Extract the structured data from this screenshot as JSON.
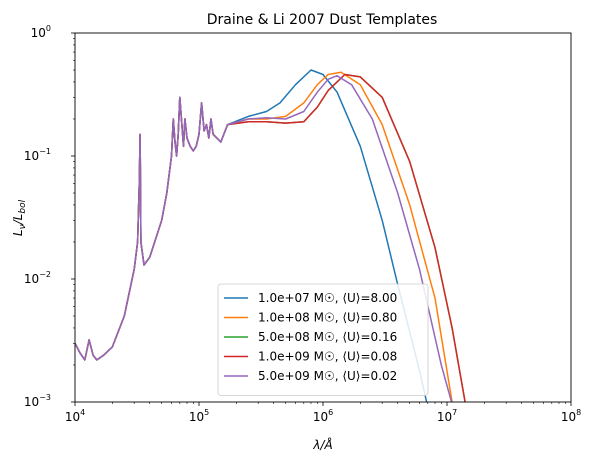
{
  "chart_data": {
    "type": "line",
    "title": "Draine & Li 2007 Dust Templates",
    "xlabel": "λ/Å",
    "ylabel": "L_ν/L_bol",
    "xscale": "log",
    "yscale": "log",
    "xlim": [
      10000,
      100000000
    ],
    "ylim": [
      0.001,
      1
    ],
    "grid": false,
    "legend_position": "lower-center",
    "x_ticks": [
      {
        "value": 10000,
        "base": "10",
        "exp": "4"
      },
      {
        "value": 100000,
        "base": "10",
        "exp": "5"
      },
      {
        "value": 1000000,
        "base": "10",
        "exp": "6"
      },
      {
        "value": 10000000,
        "base": "10",
        "exp": "7"
      },
      {
        "value": 100000000,
        "base": "10",
        "exp": "8"
      }
    ],
    "y_ticks": [
      {
        "value": 0.001,
        "base": "10",
        "exp": "−3"
      },
      {
        "value": 0.01,
        "base": "10",
        "exp": "−2"
      },
      {
        "value": 0.1,
        "base": "10",
        "exp": "−1"
      },
      {
        "value": 1,
        "base": "10",
        "exp": "0"
      }
    ],
    "pah_x": [
      10000,
      11000,
      12000,
      13000,
      14000,
      15000,
      17000,
      20000,
      25000,
      30000,
      32000,
      33000,
      33500,
      34000,
      36000,
      40000,
      50000,
      55000,
      60000,
      62000,
      64000,
      66000,
      68000,
      70000,
      75000,
      77000,
      80000,
      85000,
      90000,
      95000,
      100000,
      105000,
      110000,
      115000,
      120000,
      125000,
      130000,
      150000,
      170000
    ],
    "pah_y": [
      0.003,
      0.0025,
      0.0022,
      0.0032,
      0.0024,
      0.0022,
      0.0024,
      0.0028,
      0.005,
      0.012,
      0.02,
      0.06,
      0.15,
      0.02,
      0.013,
      0.015,
      0.03,
      0.05,
      0.1,
      0.2,
      0.13,
      0.1,
      0.15,
      0.3,
      0.12,
      0.2,
      0.14,
      0.12,
      0.11,
      0.12,
      0.15,
      0.27,
      0.16,
      0.18,
      0.14,
      0.2,
      0.15,
      0.13,
      0.18
    ],
    "series": [
      {
        "name": "1.0e+07 M☉, ⟨U⟩=8.00",
        "color": "#1f77b4",
        "x": [
          170000,
          250000,
          350000,
          450000,
          600000,
          800000,
          1000000,
          1300000,
          2000000,
          3000000,
          4000000,
          6000000,
          8000000
        ],
        "y": [
          0.19,
          0.21,
          0.23,
          0.27,
          0.38,
          0.5,
          0.46,
          0.33,
          0.12,
          0.03,
          0.009,
          0.0018,
          0.0005
        ]
      },
      {
        "name": "1.0e+08 M☉, ⟨U⟩=0.80",
        "color": "#ff7f0e",
        "x": [
          170000,
          250000,
          350000,
          500000,
          700000,
          900000,
          1100000,
          1400000,
          2000000,
          3000000,
          5000000,
          8000000,
          11000000
        ],
        "y": [
          0.18,
          0.2,
          0.2,
          0.21,
          0.27,
          0.38,
          0.46,
          0.48,
          0.38,
          0.18,
          0.04,
          0.007,
          0.001
        ]
      },
      {
        "name": "5.0e+08 M☉, ⟨U⟩=0.16",
        "color": "#2ca02c",
        "x": [
          170000,
          250000,
          350000,
          500000,
          700000,
          900000,
          1100000,
          1500000,
          2000000,
          3000000,
          5000000,
          8000000,
          11000000,
          14000000
        ],
        "y": [
          0.17,
          0.19,
          0.19,
          0.185,
          0.19,
          0.25,
          0.34,
          0.46,
          0.44,
          0.3,
          0.09,
          0.018,
          0.004,
          0.001
        ]
      },
      {
        "name": "1.0e+09 M☉, ⟨U⟩=0.08",
        "color": "#d62728",
        "x": [
          170000,
          250000,
          350000,
          500000,
          700000,
          900000,
          1100000,
          1500000,
          2000000,
          3000000,
          5000000,
          8000000,
          11000000,
          14000000
        ],
        "y": [
          0.17,
          0.19,
          0.19,
          0.185,
          0.19,
          0.25,
          0.34,
          0.46,
          0.44,
          0.3,
          0.09,
          0.018,
          0.004,
          0.001
        ]
      },
      {
        "name": "5.0e+09 M☉, ⟨U⟩=0.02",
        "color": "#9467bd",
        "x": [
          170000,
          250000,
          350000,
          500000,
          700000,
          900000,
          1100000,
          1300000,
          1700000,
          2500000,
          4000000,
          6000000,
          9000000,
          12000000
        ],
        "y": [
          0.18,
          0.2,
          0.205,
          0.2,
          0.23,
          0.33,
          0.42,
          0.45,
          0.38,
          0.2,
          0.05,
          0.012,
          0.002,
          0.0007
        ]
      }
    ]
  }
}
